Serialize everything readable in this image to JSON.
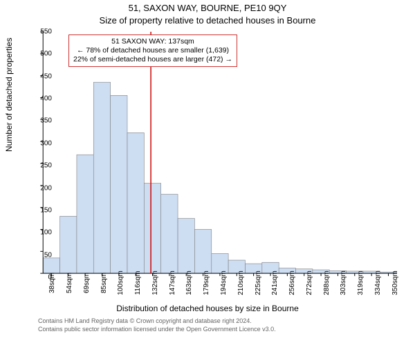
{
  "title": "51, SAXON WAY, BOURNE, PE10 9QY",
  "subtitle": "Size of property relative to detached houses in Bourne",
  "y_label": "Number of detached properties",
  "x_label": "Distribution of detached houses by size in Bourne",
  "chart": {
    "type": "histogram",
    "ylim": [
      0,
      550
    ],
    "ytick_step": 50,
    "yticks": [
      0,
      50,
      100,
      150,
      200,
      250,
      300,
      350,
      400,
      450,
      500,
      550
    ],
    "x_categories": [
      "38sqm",
      "54sqm",
      "69sqm",
      "85sqm",
      "100sqm",
      "116sqm",
      "132sqm",
      "147sqm",
      "163sqm",
      "179sqm",
      "194sqm",
      "210sqm",
      "225sqm",
      "241sqm",
      "256sqm",
      "272sqm",
      "288sqm",
      "303sqm",
      "319sqm",
      "334sqm",
      "350sqm"
    ],
    "values": [
      35,
      130,
      270,
      435,
      405,
      320,
      205,
      180,
      125,
      100,
      45,
      30,
      22,
      25,
      12,
      10,
      8,
      6,
      5,
      5,
      3
    ],
    "bar_fill": "#cdddf2",
    "bar_stroke": "#7f7f7f",
    "bar_stroke_width": 0.6,
    "axis_color": "#000000",
    "tick_fontsize": 10,
    "grid_color": "#bfbfbf",
    "marker_line_color": "#cc0000",
    "marker_line_x_index": 6.4,
    "background_color": "#ffffff"
  },
  "annotation": {
    "line1": "51 SAXON WAY: 137sqm",
    "line2": "← 78% of detached houses are smaller (1,639)",
    "line3": "22% of semi-detached houses are larger (472) →",
    "border_color": "#cc3333"
  },
  "footer": {
    "line1": "Contains HM Land Registry data © Crown copyright and database right 2024.",
    "line2": "Contains public sector information licensed under the Open Government Licence v3.0."
  }
}
